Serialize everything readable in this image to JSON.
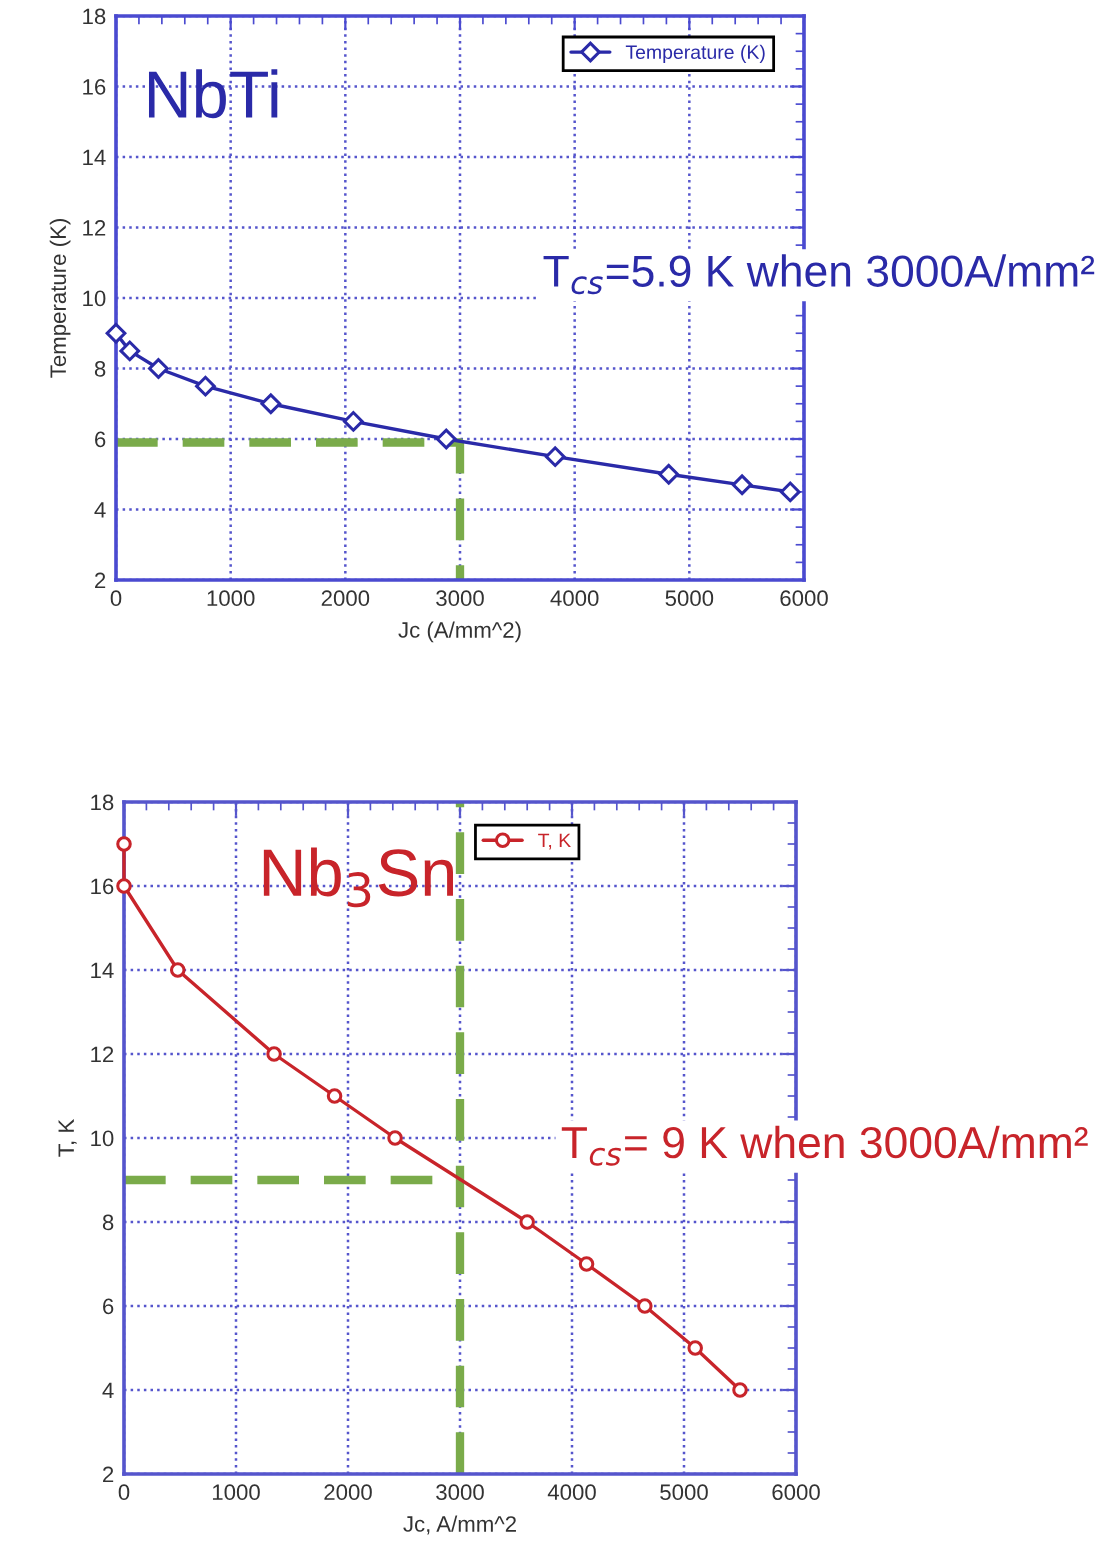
{
  "chart_data": [
    {
      "type": "line",
      "xlabel": "Jc (A/mm^2)",
      "ylabel": "Temperature (K)",
      "xlim": [
        0,
        6000
      ],
      "ylim": [
        2,
        18
      ],
      "xticks": [
        0,
        1000,
        2000,
        3000,
        4000,
        5000,
        6000
      ],
      "yticks": [
        2,
        4,
        6,
        8,
        10,
        12,
        14,
        16,
        18
      ],
      "grid": true,
      "legend": "top right",
      "annotations": [
        "NbTi",
        "T$_{cs}$=5.9 K when 3000A/mm²"
      ],
      "series": [
        {
          "name": "Temperature (K)",
          "color": "#2a2aa8",
          "marker": "diamond",
          "line_style": "solid",
          "x": [
            0,
            120,
            370,
            780,
            1350,
            2070,
            2880,
            3830,
            4820,
            5460,
            5880
          ],
          "values": [
            9,
            8.5,
            8,
            7.5,
            7,
            6.5,
            6,
            5.5,
            5,
            4.7,
            4.5
          ]
        },
        {
          "color": "#7aab4a",
          "marker": "none",
          "line_style": "dashed",
          "x": [
            0,
            3000,
            3000
          ],
          "values": [
            5.9,
            5.9,
            2
          ]
        }
      ]
    },
    {
      "type": "line",
      "xlabel": "Jc, A/mm^2",
      "ylabel": "T, K",
      "xlim": [
        0,
        6000
      ],
      "ylim": [
        2,
        18
      ],
      "xticks": [
        0,
        1000,
        2000,
        3000,
        4000,
        5000,
        6000
      ],
      "yticks": [
        2,
        4,
        6,
        8,
        10,
        12,
        14,
        16,
        18
      ],
      "grid": true,
      "legend": "top",
      "annotations": [
        "Nb$_{3}$Sn",
        "T$_{cs}$= 9 K when 3000A/mm²"
      ],
      "ref_lines": [
        {
          "axis": "x",
          "value": 3000,
          "color": "#7aab4a",
          "line_style": "dashed"
        }
      ],
      "series": [
        {
          "name": "T, K",
          "color": "#c8242a",
          "marker": "circle",
          "line_style": "solid",
          "x": [
            0,
            0,
            480,
            1340,
            1880,
            2420,
            3600,
            4130,
            4650,
            5100,
            5500
          ],
          "values": [
            17,
            16,
            14,
            12,
            11,
            10,
            8,
            7,
            6,
            5,
            4
          ]
        },
        {
          "color": "#7aab4a",
          "marker": "none",
          "line_style": "dashed",
          "x": [
            0,
            3000
          ],
          "values": [
            9,
            9
          ]
        }
      ]
    }
  ]
}
